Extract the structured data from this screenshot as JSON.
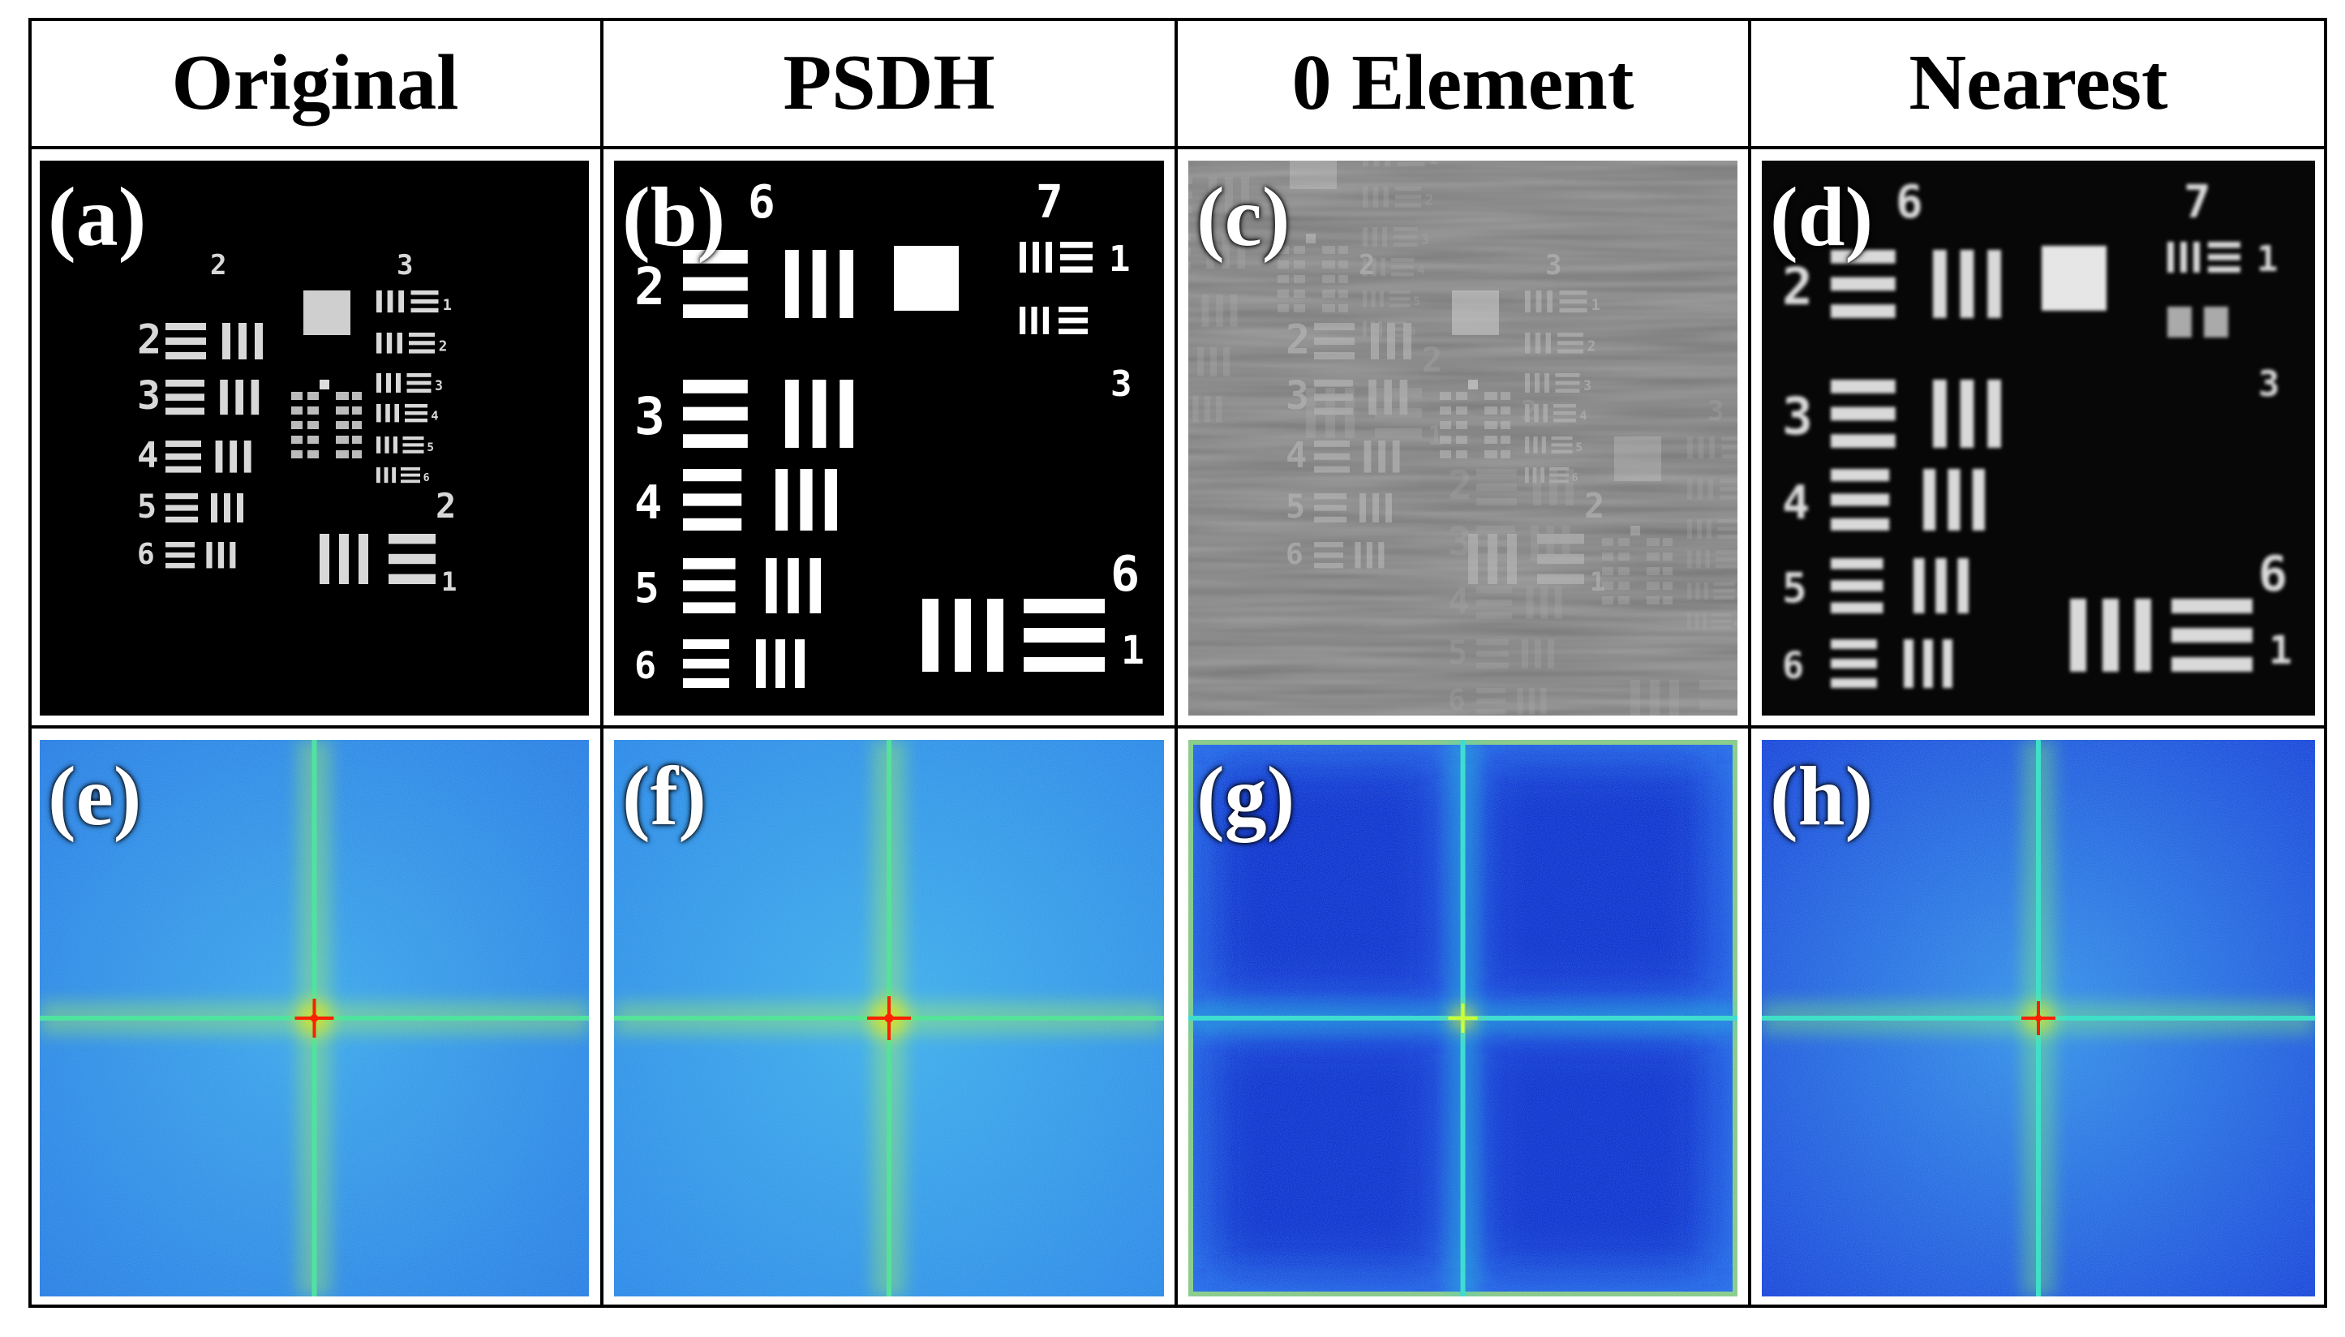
{
  "headers": [
    "Original",
    "PSDH",
    "0 Element",
    "Nearest"
  ],
  "panel_labels": [
    "(a)",
    "(b)",
    "(c)",
    "(d)",
    "(e)",
    "(f)",
    "(g)",
    "(h)"
  ],
  "target_groups": [
    "1",
    "2",
    "3",
    "4",
    "5",
    "6",
    "7"
  ],
  "colors": {
    "border": "#000000",
    "image_bg": "#000000",
    "target_white": "#ffffff",
    "zero_element_bg": "#777777",
    "spectrum_bg": "#1f7be6",
    "spectrum_dark_bg": "#0a2fd6",
    "spectrum_axis": "#40e0d0",
    "spectrum_center": "#ff2000"
  }
}
